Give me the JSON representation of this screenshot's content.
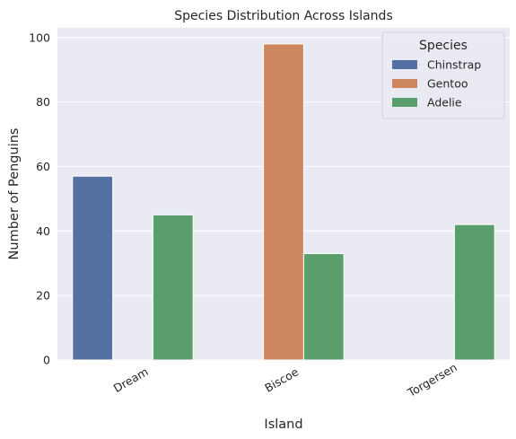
{
  "chart_data": {
    "type": "bar",
    "title": "Species Distribution Across Islands",
    "xlabel": "Island",
    "ylabel": "Number of Penguins",
    "categories": [
      "Dream",
      "Biscoe",
      "Torgersen"
    ],
    "series": [
      {
        "name": "Chinstrap",
        "color": "#5470a3",
        "values": [
          57,
          null,
          null
        ]
      },
      {
        "name": "Gentoo",
        "color": "#cd865d",
        "values": [
          null,
          98,
          null
        ]
      },
      {
        "name": "Adelie",
        "color": "#5a9e6b",
        "values": [
          45,
          33,
          42
        ]
      }
    ],
    "ylim": [
      0,
      103
    ],
    "yticks": [
      0,
      20,
      40,
      60,
      80,
      100
    ],
    "grid": true,
    "legend": {
      "title": "Species",
      "placement": "top-right"
    },
    "background": "#eaeaf2"
  }
}
